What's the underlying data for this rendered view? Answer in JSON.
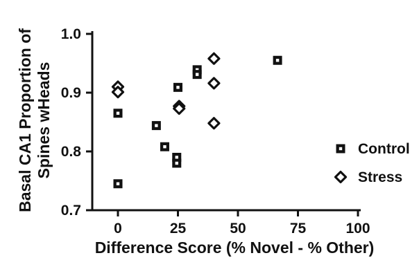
{
  "chart_data": {
    "type": "scatter",
    "title": "",
    "xlabel": "Difference Score (% Novel - % Other)",
    "ylabel_lines": [
      "Basal CA1 Proportion of",
      "Spines wHeads"
    ],
    "xlim": [
      0,
      100
    ],
    "ylim": [
      0.7,
      1.0
    ],
    "x_ticks": [
      0,
      25,
      50,
      75,
      100
    ],
    "x_tick_labels": [
      "0",
      "25",
      "50",
      "75",
      "100"
    ],
    "y_ticks": [
      0.7,
      0.8,
      0.9,
      1.0
    ],
    "y_tick_labels": [
      "0.7",
      "0.8",
      "0.9",
      "1.0"
    ],
    "grid": false,
    "legend_position": "right",
    "series": [
      {
        "name": "Control",
        "marker": "square",
        "color": "#111111",
        "points": [
          {
            "x": 0,
            "y": 0.865
          },
          {
            "x": 0,
            "y": 0.745
          },
          {
            "x": 16,
            "y": 0.844
          },
          {
            "x": 19.5,
            "y": 0.808
          },
          {
            "x": 24.5,
            "y": 0.79
          },
          {
            "x": 24.5,
            "y": 0.78
          },
          {
            "x": 25,
            "y": 0.909
          },
          {
            "x": 33,
            "y": 0.939
          },
          {
            "x": 33,
            "y": 0.931
          },
          {
            "x": 66.5,
            "y": 0.955
          }
        ]
      },
      {
        "name": "Stress",
        "marker": "diamond",
        "color": "#111111",
        "points": [
          {
            "x": 0,
            "y": 0.91
          },
          {
            "x": 0,
            "y": 0.901
          },
          {
            "x": 25.5,
            "y": 0.877
          },
          {
            "x": 25.5,
            "y": 0.873
          },
          {
            "x": 40,
            "y": 0.958
          },
          {
            "x": 40,
            "y": 0.916
          },
          {
            "x": 40,
            "y": 0.848
          }
        ]
      }
    ]
  }
}
